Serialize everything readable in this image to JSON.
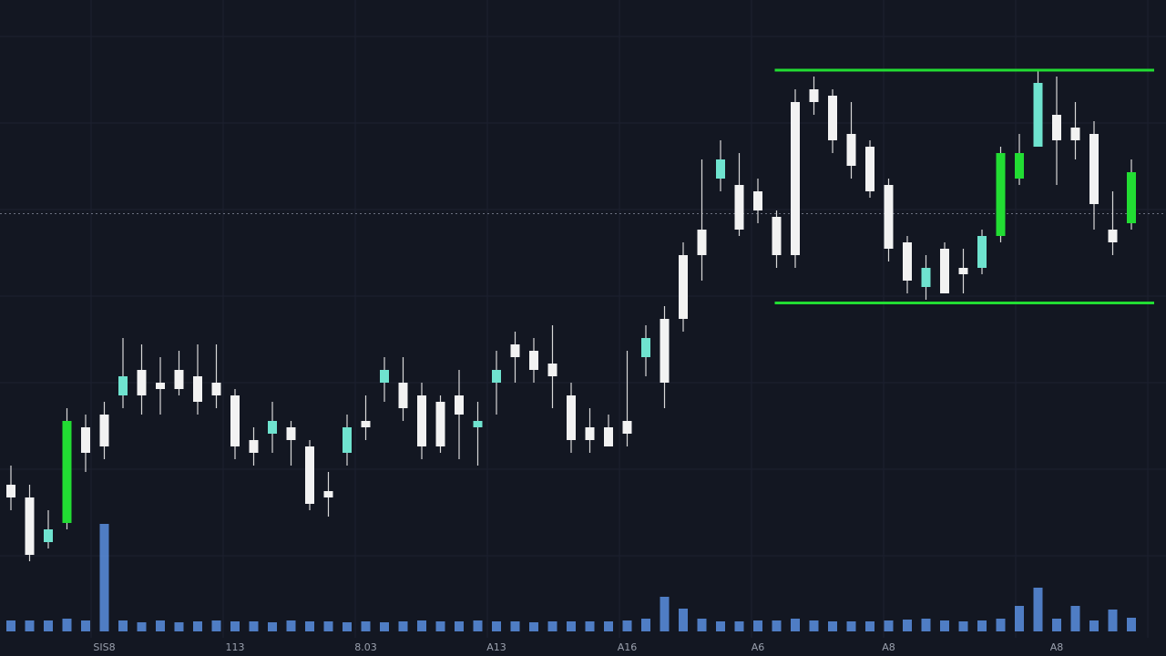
{
  "chart_data": {
    "type": "candlestick",
    "categories": [
      null,
      null,
      null,
      null,
      null,
      "SIS8",
      null,
      null,
      null,
      null,
      null,
      null,
      "113",
      null,
      null,
      null,
      null,
      null,
      null,
      "8.03",
      null,
      null,
      null,
      null,
      null,
      null,
      "A13",
      null,
      null,
      null,
      null,
      null,
      null,
      "A16",
      null,
      null,
      null,
      null,
      null,
      null,
      "A6",
      null,
      null,
      null,
      null,
      null,
      null,
      "A8",
      null,
      null,
      null,
      null,
      null,
      null,
      null,
      null,
      "A8",
      null,
      null,
      null,
      null
    ],
    "open": [
      24,
      22,
      15,
      18,
      33,
      30,
      38,
      42,
      39,
      42,
      41,
      40,
      38,
      31,
      32,
      33,
      30,
      22,
      29,
      33,
      40,
      40,
      38,
      37,
      38,
      34,
      40,
      46,
      45,
      43,
      38,
      33,
      33,
      32,
      44,
      50,
      50,
      60,
      72,
      71,
      70,
      66,
      60,
      84,
      85,
      79,
      77,
      71,
      62,
      55,
      61,
      58,
      58,
      63,
      72,
      87,
      82,
      78,
      79,
      64,
      65
    ],
    "high": [
      27,
      24,
      20,
      36,
      35,
      37,
      47,
      46,
      44,
      45,
      46,
      46,
      39,
      33,
      37,
      34,
      31,
      26,
      35,
      38,
      44,
      44,
      40,
      38,
      42,
      37,
      45,
      48,
      47,
      49,
      40,
      36,
      35,
      45,
      49,
      52,
      62,
      75,
      78,
      76,
      72,
      67,
      86,
      88,
      86,
      84,
      78,
      72,
      63,
      60,
      62,
      61,
      64,
      77,
      79,
      89,
      88,
      84,
      81,
      70,
      75
    ],
    "low": [
      20,
      12,
      14,
      17,
      26,
      28,
      36,
      35,
      35,
      38,
      35,
      36,
      28,
      27,
      29,
      27,
      20,
      19,
      27,
      31,
      37,
      34,
      28,
      29,
      28,
      27,
      35,
      40,
      40,
      36,
      29,
      29,
      30,
      30,
      41,
      36,
      48,
      56,
      70,
      63,
      65,
      58,
      58,
      82,
      76,
      72,
      69,
      59,
      54,
      53,
      54,
      54,
      57,
      62,
      71,
      77,
      71,
      75,
      64,
      60,
      64
    ],
    "close": [
      22,
      13,
      17,
      34,
      29,
      35,
      41,
      38,
      40,
      39,
      37,
      38,
      30,
      29,
      34,
      31,
      21,
      23,
      33,
      34,
      42,
      36,
      30,
      30,
      35,
      33,
      42,
      44,
      42,
      41,
      31,
      31,
      30,
      34,
      47,
      40,
      60,
      64,
      75,
      64,
      67,
      60,
      84,
      86,
      78,
      74,
      70,
      61,
      56,
      58,
      54,
      57,
      63,
      76,
      76,
      77,
      78,
      80,
      68,
      62,
      73
    ],
    "colors": [
      "#f2f2f2",
      "#f2f2f2",
      "#6fe3cf",
      "#22dd33",
      "#f2f2f2",
      "#f2f2f2",
      "#6fe3cf",
      "#f2f2f2",
      "#f2f2f2",
      "#f2f2f2",
      "#f2f2f2",
      "#f2f2f2",
      "#f2f2f2",
      "#f2f2f2",
      "#6fe3cf",
      "#f2f2f2",
      "#f2f2f2",
      "#f2f2f2",
      "#6fe3cf",
      "#f2f2f2",
      "#6fe3cf",
      "#f2f2f2",
      "#f2f2f2",
      "#f2f2f2",
      "#f2f2f2",
      "#6fe3cf",
      "#6fe3cf",
      "#f2f2f2",
      "#f2f2f2",
      "#f2f2f2",
      "#f2f2f2",
      "#f2f2f2",
      "#f2f2f2",
      "#f2f2f2",
      "#6fe3cf",
      "#f2f2f2",
      "#f2f2f2",
      "#f2f2f2",
      "#6fe3cf",
      "#f2f2f2",
      "#f2f2f2",
      "#f2f2f2",
      "#f2f2f2",
      "#f2f2f2",
      "#f2f2f2",
      "#f2f2f2",
      "#f2f2f2",
      "#f2f2f2",
      "#f2f2f2",
      "#6fe3cf",
      "#f2f2f2",
      "#f2f2f2",
      "#6fe3cf",
      "#22dd33",
      "#22dd33",
      "#6fe3cf",
      "#f2f2f2",
      "#f2f2f2",
      "#f2f2f2",
      "#f2f2f2",
      "#22dd33"
    ],
    "volume": [
      12,
      12,
      12,
      14,
      12,
      118,
      12,
      10,
      12,
      10,
      11,
      12,
      11,
      11,
      10,
      12,
      11,
      11,
      10,
      11,
      10,
      11,
      12,
      11,
      11,
      12,
      11,
      11,
      10,
      11,
      11,
      11,
      11,
      12,
      14,
      38,
      25,
      14,
      11,
      11,
      12,
      12,
      14,
      12,
      11,
      11,
      11,
      12,
      13,
      14,
      12,
      11,
      12,
      14,
      28,
      48,
      14,
      28,
      12,
      24,
      15
    ],
    "volume_color": "#5b8fe0",
    "ylim": [
      0,
      100
    ],
    "volume_ylim": [
      0,
      120
    ],
    "reference_line": 66.5,
    "channel": {
      "upper": 89,
      "lower": 52.5,
      "start": 41,
      "color": "#22dd33"
    }
  }
}
